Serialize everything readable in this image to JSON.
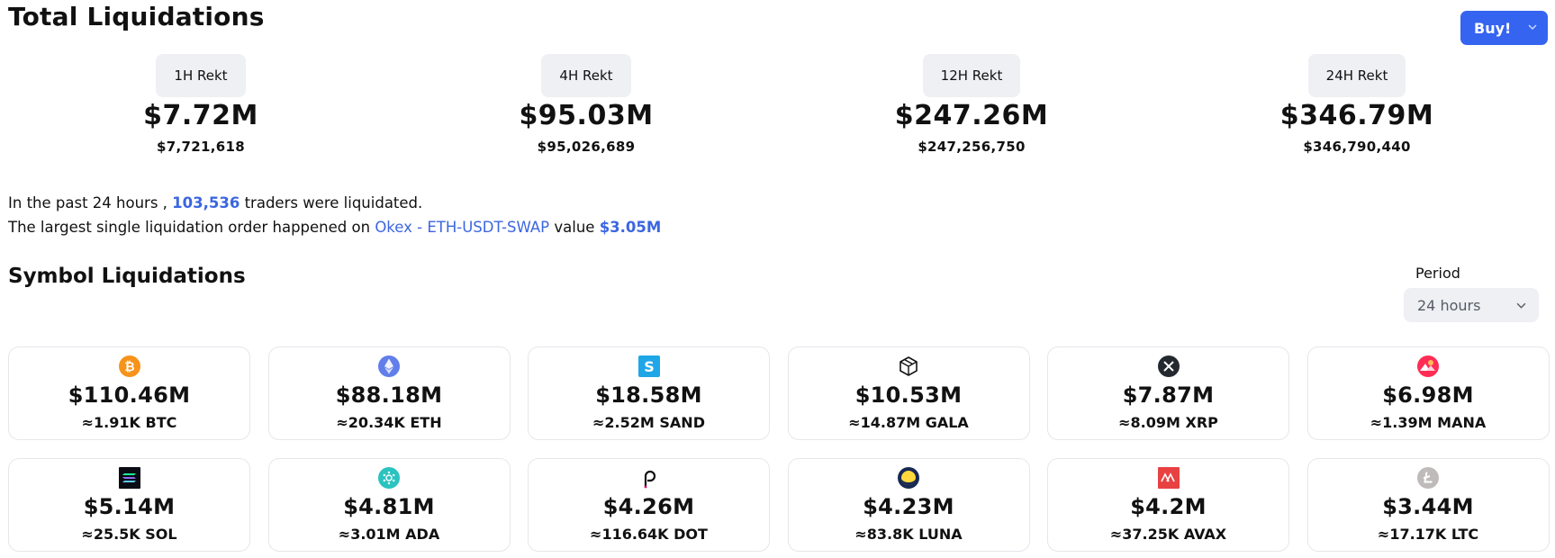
{
  "header": {
    "title": "Total Liquidations",
    "buy_label": "Buy!"
  },
  "totals": [
    {
      "label": "1H Rekt",
      "amount": "$7.72M",
      "exact": "$7,721,618"
    },
    {
      "label": "4H Rekt",
      "amount": "$95.03M",
      "exact": "$95,026,689"
    },
    {
      "label": "12H Rekt",
      "amount": "$247.26M",
      "exact": "$247,256,750"
    },
    {
      "label": "24H Rekt",
      "amount": "$346.79M",
      "exact": "$346,790,440"
    }
  ],
  "summary": {
    "line1_prefix": "In the past 24 hours ,",
    "traders_count": "103,536",
    "line1_suffix": "traders were liquidated.",
    "line2_prefix": "The largest single liquidation order happened on",
    "largest_order_market": "Okex - ETH-USDT-SWAP",
    "line2_mid": "value",
    "largest_order_value": "$3.05M"
  },
  "symbols_section": {
    "title": "Symbol Liquidations",
    "period_label": "Period",
    "period_value": "24 hours"
  },
  "symbols": [
    {
      "icon": "btc-icon",
      "amount": "$110.46M",
      "qty": "≈1.91K BTC"
    },
    {
      "icon": "eth-icon",
      "amount": "$88.18M",
      "qty": "≈20.34K ETH"
    },
    {
      "icon": "sand-icon",
      "amount": "$18.58M",
      "qty": "≈2.52M SAND"
    },
    {
      "icon": "gala-icon",
      "amount": "$10.53M",
      "qty": "≈14.87M GALA"
    },
    {
      "icon": "xrp-icon",
      "amount": "$7.87M",
      "qty": "≈8.09M XRP"
    },
    {
      "icon": "mana-icon",
      "amount": "$6.98M",
      "qty": "≈1.39M MANA"
    },
    {
      "icon": "sol-icon",
      "amount": "$5.14M",
      "qty": "≈25.5K SOL"
    },
    {
      "icon": "ada-icon",
      "amount": "$4.81M",
      "qty": "≈3.01M ADA"
    },
    {
      "icon": "dot-icon",
      "amount": "$4.26M",
      "qty": "≈116.64K DOT"
    },
    {
      "icon": "luna-icon",
      "amount": "$4.23M",
      "qty": "≈83.8K LUNA"
    },
    {
      "icon": "avax-icon",
      "amount": "$4.2M",
      "qty": "≈37.25K AVAX"
    },
    {
      "icon": "ltc-icon",
      "amount": "$3.44M",
      "qty": "≈17.17K LTC"
    }
  ],
  "colors": {
    "accent": "#3564f1",
    "link": "#3b66e0",
    "pill_bg": "#eef0f3",
    "card_border": "#e5e7eb"
  }
}
